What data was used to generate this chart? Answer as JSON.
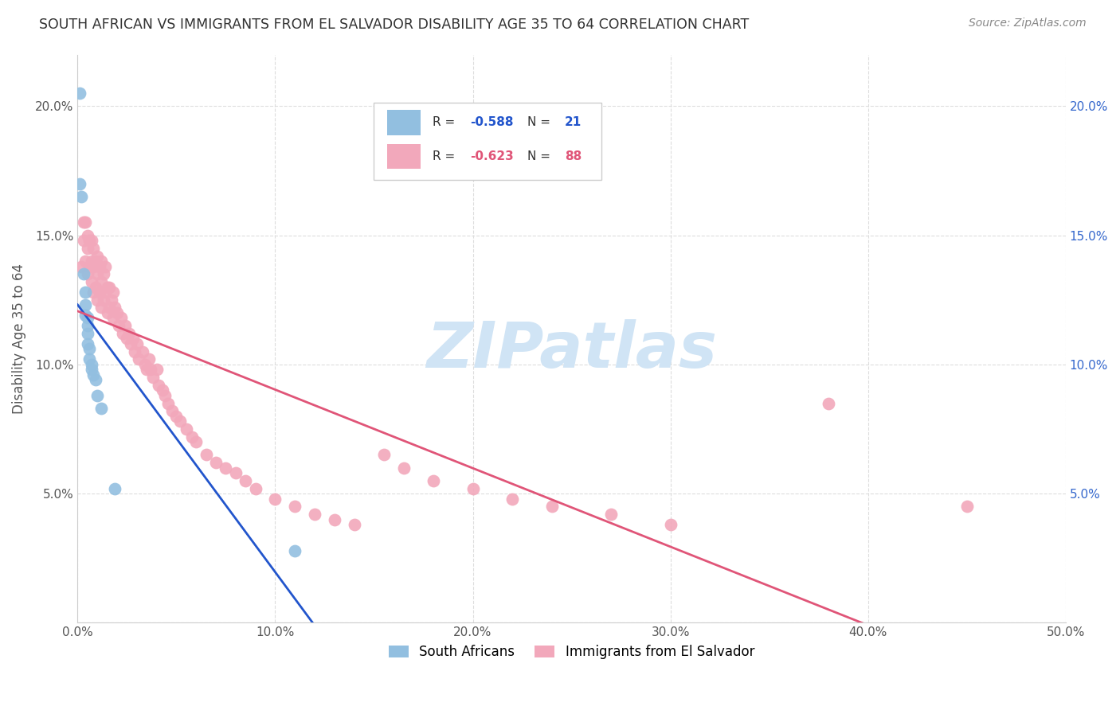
{
  "title": "SOUTH AFRICAN VS IMMIGRANTS FROM EL SALVADOR DISABILITY AGE 35 TO 64 CORRELATION CHART",
  "source": "Source: ZipAtlas.com",
  "ylabel": "Disability Age 35 to 64",
  "xlim": [
    0.0,
    0.5
  ],
  "ylim": [
    0.0,
    0.22
  ],
  "xticks": [
    0.0,
    0.1,
    0.2,
    0.3,
    0.4,
    0.5
  ],
  "yticks": [
    0.0,
    0.05,
    0.1,
    0.15,
    0.2
  ],
  "xtick_labels": [
    "0.0%",
    "10.0%",
    "20.0%",
    "30.0%",
    "40.0%",
    "50.0%"
  ],
  "ytick_labels": [
    "",
    "5.0%",
    "10.0%",
    "15.0%",
    "20.0%"
  ],
  "ytick_labels_right": [
    "",
    "5.0%",
    "10.0%",
    "15.0%",
    "20.0%"
  ],
  "south_african_color": "#92BFE0",
  "el_salvador_color": "#F2A8BB",
  "south_african_line_color": "#2255CC",
  "el_salvador_line_color": "#E05578",
  "watermark": "ZIPatlas",
  "watermark_color": "#D0E4F5",
  "south_african_R": "-0.588",
  "south_african_N": "21",
  "el_salvador_R": "-0.623",
  "el_salvador_N": "88",
  "south_africans_x": [
    0.001,
    0.001,
    0.002,
    0.003,
    0.004,
    0.004,
    0.004,
    0.005,
    0.005,
    0.005,
    0.005,
    0.006,
    0.006,
    0.007,
    0.007,
    0.008,
    0.009,
    0.01,
    0.012,
    0.019,
    0.11
  ],
  "south_africans_y": [
    0.205,
    0.17,
    0.165,
    0.135,
    0.128,
    0.123,
    0.119,
    0.118,
    0.115,
    0.112,
    0.108,
    0.106,
    0.102,
    0.1,
    0.098,
    0.096,
    0.094,
    0.088,
    0.083,
    0.052,
    0.028
  ],
  "el_salvador_x": [
    0.002,
    0.003,
    0.003,
    0.004,
    0.004,
    0.005,
    0.005,
    0.005,
    0.006,
    0.006,
    0.007,
    0.007,
    0.007,
    0.008,
    0.008,
    0.008,
    0.009,
    0.009,
    0.01,
    0.01,
    0.01,
    0.011,
    0.011,
    0.012,
    0.012,
    0.012,
    0.013,
    0.013,
    0.014,
    0.014,
    0.015,
    0.015,
    0.016,
    0.016,
    0.017,
    0.018,
    0.018,
    0.019,
    0.02,
    0.021,
    0.022,
    0.023,
    0.024,
    0.025,
    0.026,
    0.027,
    0.028,
    0.029,
    0.03,
    0.031,
    0.033,
    0.034,
    0.035,
    0.036,
    0.037,
    0.038,
    0.04,
    0.041,
    0.043,
    0.044,
    0.046,
    0.048,
    0.05,
    0.052,
    0.055,
    0.058,
    0.06,
    0.065,
    0.07,
    0.075,
    0.08,
    0.085,
    0.09,
    0.1,
    0.11,
    0.12,
    0.13,
    0.14,
    0.155,
    0.165,
    0.18,
    0.2,
    0.22,
    0.24,
    0.27,
    0.3,
    0.38,
    0.45
  ],
  "el_salvador_y": [
    0.138,
    0.155,
    0.148,
    0.155,
    0.14,
    0.15,
    0.145,
    0.135,
    0.148,
    0.138,
    0.148,
    0.14,
    0.132,
    0.145,
    0.138,
    0.128,
    0.14,
    0.13,
    0.142,
    0.135,
    0.125,
    0.138,
    0.128,
    0.14,
    0.132,
    0.122,
    0.135,
    0.125,
    0.138,
    0.128,
    0.13,
    0.12,
    0.13,
    0.122,
    0.125,
    0.128,
    0.118,
    0.122,
    0.12,
    0.115,
    0.118,
    0.112,
    0.115,
    0.11,
    0.112,
    0.108,
    0.11,
    0.105,
    0.108,
    0.102,
    0.105,
    0.1,
    0.098,
    0.102,
    0.098,
    0.095,
    0.098,
    0.092,
    0.09,
    0.088,
    0.085,
    0.082,
    0.08,
    0.078,
    0.075,
    0.072,
    0.07,
    0.065,
    0.062,
    0.06,
    0.058,
    0.055,
    0.052,
    0.048,
    0.045,
    0.042,
    0.04,
    0.038,
    0.065,
    0.06,
    0.055,
    0.052,
    0.048,
    0.045,
    0.042,
    0.038,
    0.085,
    0.045
  ],
  "background_color": "#FFFFFF",
  "grid_color": "#DDDDDD",
  "title_color": "#333333",
  "figsize": [
    14.06,
    8.92
  ],
  "dpi": 100
}
